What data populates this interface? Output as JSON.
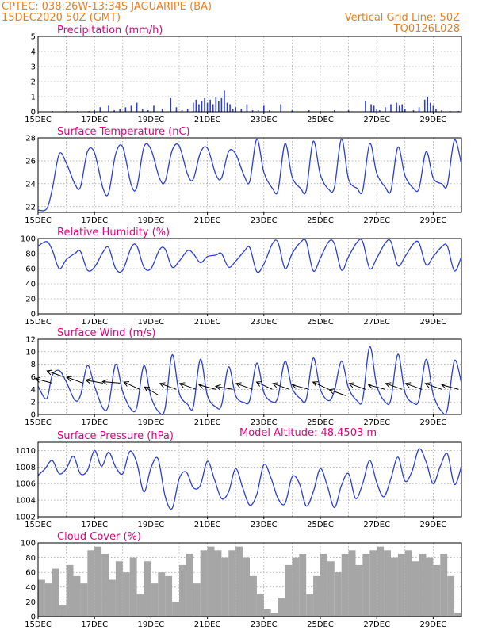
{
  "header": {
    "line1": "CPTEC:   038:26W-13:34S   JAGUARIPE (BA)",
    "line2": "15DEC2020 50Z (GMT)",
    "vgrid": "Vertical Grid Line: 50Z",
    "code": "TQ0126L028",
    "model_altitude": "Model Altitude: 48.4503 m"
  },
  "colors": {
    "series_line": "#2b3fd6",
    "bar": "#2b3fd6",
    "cloud": "#a6a6a6",
    "title": "#e6007e",
    "header": "#e67e22",
    "axis": "#000000",
    "grid": "#8a8a8a"
  },
  "chart_data": [
    {
      "type": "bar",
      "title": "Precipitation (mm/h)",
      "ylim": [
        0,
        5
      ],
      "yticks": [
        0,
        1,
        2,
        3,
        4,
        5
      ],
      "xlim": [
        15,
        30
      ],
      "xticks": [
        "15DEC",
        "17DEC",
        "19DEC",
        "21DEC",
        "23DEC",
        "25DEC",
        "27DEC",
        "29DEC"
      ],
      "x": [
        15.5,
        16.0,
        16.4,
        16.8,
        17.0,
        17.2,
        17.5,
        17.7,
        17.9,
        18.1,
        18.3,
        18.5,
        18.7,
        18.9,
        19.1,
        19.4,
        19.7,
        19.9,
        20.1,
        20.3,
        20.5,
        20.6,
        20.7,
        20.8,
        20.9,
        21.0,
        21.1,
        21.2,
        21.3,
        21.4,
        21.5,
        21.6,
        21.7,
        21.8,
        21.9,
        22.0,
        22.2,
        22.4,
        22.6,
        22.8,
        23.0,
        23.2,
        23.6,
        24.0,
        24.6,
        25.0,
        25.5,
        26.0,
        26.6,
        26.8,
        26.9,
        27.0,
        27.1,
        27.3,
        27.5,
        27.7,
        27.8,
        27.9,
        28.0,
        28.3,
        28.5,
        28.7,
        28.8,
        28.9,
        29.0,
        29.1,
        29.3,
        29.6,
        29.9
      ],
      "values": [
        0.05,
        0.05,
        0.05,
        0.05,
        0.1,
        0.3,
        0.4,
        0.1,
        0.2,
        0.3,
        0.4,
        0.6,
        0.2,
        0.1,
        0.4,
        0.2,
        0.9,
        0.3,
        0.1,
        0.2,
        0.6,
        0.8,
        0.5,
        0.7,
        0.9,
        0.6,
        0.8,
        0.5,
        1.0,
        0.7,
        0.9,
        1.4,
        0.6,
        0.5,
        0.2,
        0.3,
        0.2,
        0.5,
        0.1,
        0.1,
        0.4,
        0.1,
        0.5,
        0.1,
        0.1,
        0.05,
        0.1,
        0.1,
        0.7,
        0.5,
        0.4,
        0.2,
        0.1,
        0.3,
        0.5,
        0.6,
        0.4,
        0.5,
        0.2,
        0.1,
        0.3,
        0.8,
        1.0,
        0.6,
        0.4,
        0.2,
        0.1,
        0.05,
        0.05
      ]
    },
    {
      "type": "line",
      "title": "Surface Temperature (nC)",
      "ylim": [
        21.5,
        28
      ],
      "yticks": [
        22,
        24,
        26,
        28
      ],
      "xlim": [
        15,
        30
      ],
      "xticks": [
        "15DEC",
        "17DEC",
        "19DEC",
        "21DEC",
        "23DEC",
        "25DEC",
        "27DEC",
        "29DEC"
      ],
      "x": [
        15.0,
        15.3,
        15.5,
        15.75,
        16.0,
        16.3,
        16.5,
        16.75,
        17.0,
        17.3,
        17.5,
        17.75,
        18.0,
        18.3,
        18.5,
        18.75,
        19.0,
        19.3,
        19.5,
        19.75,
        20.0,
        20.3,
        20.5,
        20.75,
        21.0,
        21.3,
        21.5,
        21.75,
        22.0,
        22.3,
        22.5,
        22.75,
        23.0,
        23.3,
        23.5,
        23.75,
        24.0,
        24.3,
        24.5,
        24.75,
        25.0,
        25.3,
        25.5,
        25.75,
        26.0,
        26.3,
        26.5,
        26.75,
        27.0,
        27.3,
        27.5,
        27.75,
        28.0,
        28.3,
        28.5,
        28.75,
        29.0,
        29.3,
        29.5,
        29.75,
        30.0
      ],
      "values": [
        21.7,
        21.8,
        23.5,
        26.6,
        25.8,
        24.0,
        23.7,
        26.8,
        26.7,
        23.6,
        23.2,
        26.6,
        27.2,
        23.9,
        23.7,
        27.2,
        27.0,
        24.5,
        24.2,
        26.9,
        27.3,
        24.8,
        24.4,
        26.7,
        27.1,
        24.8,
        24.5,
        26.8,
        26.6,
        24.7,
        24.2,
        27.9,
        25.0,
        23.6,
        23.4,
        27.5,
        24.6,
        23.6,
        23.4,
        27.7,
        24.8,
        23.5,
        23.7,
        27.9,
        24.4,
        23.6,
        23.4,
        27.5,
        24.9,
        23.7,
        23.4,
        27.2,
        24.7,
        23.6,
        23.6,
        26.8,
        24.5,
        24.0,
        23.9,
        27.8,
        25.7
      ]
    },
    {
      "type": "line",
      "title": "Relative Humidity (%)",
      "ylim": [
        0,
        100
      ],
      "yticks": [
        0,
        20,
        40,
        60,
        80,
        100
      ],
      "xlim": [
        15,
        30
      ],
      "xticks": [
        "15DEC",
        "17DEC",
        "19DEC",
        "21DEC",
        "23DEC",
        "25DEC",
        "27DEC",
        "29DEC"
      ],
      "x": [
        15.0,
        15.3,
        15.5,
        15.75,
        16.0,
        16.3,
        16.5,
        16.75,
        17.0,
        17.3,
        17.5,
        17.75,
        18.0,
        18.3,
        18.5,
        18.75,
        19.0,
        19.3,
        19.5,
        19.75,
        20.0,
        20.3,
        20.5,
        20.75,
        21.0,
        21.3,
        21.5,
        21.75,
        22.0,
        22.3,
        22.5,
        22.75,
        23.0,
        23.3,
        23.5,
        23.75,
        24.0,
        24.3,
        24.5,
        24.75,
        25.0,
        25.3,
        25.5,
        25.75,
        26.0,
        26.3,
        26.5,
        26.75,
        27.0,
        27.3,
        27.5,
        27.75,
        28.0,
        28.3,
        28.5,
        28.75,
        29.0,
        29.3,
        29.5,
        29.75,
        30.0
      ],
      "values": [
        90,
        96,
        85,
        60,
        72,
        80,
        83,
        58,
        62,
        82,
        88,
        60,
        58,
        88,
        90,
        62,
        60,
        85,
        86,
        62,
        70,
        84,
        80,
        68,
        76,
        78,
        80,
        62,
        70,
        83,
        88,
        56,
        66,
        93,
        95,
        60,
        80,
        95,
        96,
        57,
        74,
        96,
        93,
        58,
        76,
        95,
        96,
        60,
        74,
        94,
        96,
        64,
        76,
        93,
        94,
        65,
        76,
        89,
        90,
        57,
        76
      ]
    },
    {
      "type": "line",
      "title": "Surface Wind (m/s)",
      "ylim": [
        0,
        12
      ],
      "yticks": [
        0,
        2,
        4,
        6,
        8,
        10,
        12
      ],
      "xlim": [
        15,
        30
      ],
      "xticks": [
        "15DEC",
        "17DEC",
        "19DEC",
        "21DEC",
        "23DEC",
        "25DEC",
        "27DEC",
        "29DEC"
      ],
      "x": [
        15.0,
        15.3,
        15.5,
        15.75,
        16.0,
        16.3,
        16.5,
        16.75,
        17.0,
        17.3,
        17.5,
        17.75,
        18.0,
        18.3,
        18.5,
        18.75,
        19.0,
        19.3,
        19.5,
        19.75,
        20.0,
        20.3,
        20.5,
        20.75,
        21.0,
        21.3,
        21.5,
        21.75,
        22.0,
        22.3,
        22.5,
        22.75,
        23.0,
        23.3,
        23.5,
        23.75,
        24.0,
        24.3,
        24.5,
        24.75,
        25.0,
        25.3,
        25.5,
        25.75,
        26.0,
        26.3,
        26.5,
        26.75,
        27.0,
        27.3,
        27.5,
        27.75,
        28.0,
        28.3,
        28.5,
        28.75,
        29.0,
        29.3,
        29.5,
        29.75,
        30.0
      ],
      "values": [
        4.5,
        2.5,
        6.2,
        7.0,
        5.2,
        2.3,
        3.0,
        7.8,
        4.5,
        1.0,
        1.5,
        8.0,
        3.6,
        0.8,
        1.2,
        7.8,
        2.8,
        0.3,
        1.0,
        9.5,
        3.4,
        1.6,
        1.2,
        8.8,
        3.0,
        1.2,
        1.5,
        7.6,
        3.0,
        1.9,
        2.3,
        8.2,
        3.5,
        2.0,
        2.8,
        8.5,
        4.2,
        2.5,
        2.4,
        9.0,
        4.0,
        2.2,
        3.8,
        8.5,
        4.2,
        2.2,
        2.4,
        10.8,
        4.6,
        2.0,
        2.4,
        9.6,
        3.5,
        1.8,
        2.4,
        8.8,
        3.2,
        0.5,
        0.8,
        8.6,
        5.0
      ],
      "arrows": {
        "x": [
          15.5,
          15.9,
          16.6,
          17.3,
          17.9,
          18.6,
          19.3,
          19.9,
          20.6,
          21.3,
          21.9,
          22.6,
          23.3,
          23.9,
          24.6,
          25.3,
          25.9,
          26.6,
          27.3,
          27.9,
          28.6,
          29.3,
          29.9
        ],
        "speed": [
          5,
          6,
          5,
          5,
          5,
          4,
          3,
          4,
          4,
          4,
          4,
          4,
          4,
          4,
          4,
          4,
          3,
          4,
          4,
          4,
          4,
          4,
          4
        ],
        "dir_to_deg": [
          165,
          160,
          160,
          170,
          175,
          155,
          150,
          160,
          160,
          165,
          170,
          160,
          155,
          160,
          165,
          155,
          160,
          160,
          165,
          160,
          160,
          160,
          165
        ]
      }
    },
    {
      "type": "line",
      "title": "Surface Pressure (hPa)",
      "ylim": [
        1002,
        1011
      ],
      "yticks": [
        1002,
        1004,
        1006,
        1008,
        1010
      ],
      "xlim": [
        15,
        30
      ],
      "xticks": [
        "15DEC",
        "17DEC",
        "19DEC",
        "21DEC",
        "23DEC",
        "25DEC",
        "27DEC",
        "29DEC"
      ],
      "x": [
        15.0,
        15.25,
        15.5,
        15.75,
        16.0,
        16.25,
        16.5,
        16.75,
        17.0,
        17.25,
        17.5,
        17.75,
        18.0,
        18.25,
        18.5,
        18.75,
        19.0,
        19.25,
        19.5,
        19.75,
        20.0,
        20.25,
        20.5,
        20.75,
        21.0,
        21.25,
        21.5,
        21.75,
        22.0,
        22.25,
        22.5,
        22.75,
        23.0,
        23.25,
        23.5,
        23.75,
        24.0,
        24.25,
        24.5,
        24.75,
        25.0,
        25.25,
        25.5,
        25.75,
        26.0,
        26.25,
        26.5,
        26.75,
        27.0,
        27.25,
        27.5,
        27.75,
        28.0,
        28.25,
        28.5,
        28.75,
        29.0,
        29.25,
        29.5,
        29.75,
        30.0
      ],
      "values": [
        1007.0,
        1007.8,
        1008.8,
        1007.2,
        1007.8,
        1009.3,
        1007.2,
        1007.6,
        1010.0,
        1008.1,
        1009.8,
        1008.0,
        1007.2,
        1009.9,
        1008.5,
        1005.0,
        1007.9,
        1009.0,
        1004.5,
        1003.0,
        1006.6,
        1007.4,
        1005.5,
        1005.8,
        1008.7,
        1006.5,
        1004.2,
        1005.0,
        1007.8,
        1005.5,
        1003.4,
        1004.7,
        1008.3,
        1006.7,
        1004.2,
        1003.6,
        1006.8,
        1006.1,
        1003.3,
        1005.0,
        1007.8,
        1005.7,
        1003.1,
        1005.8,
        1007.2,
        1004.2,
        1006.0,
        1008.8,
        1006.1,
        1004.4,
        1006.6,
        1009.2,
        1006.3,
        1007.5,
        1010.2,
        1008.6,
        1006.0,
        1008.1,
        1009.6,
        1005.9,
        1008.1
      ]
    },
    {
      "type": "bar",
      "title": "Cloud Cover (%)",
      "ylim": [
        0,
        100
      ],
      "yticks": [
        0,
        20,
        40,
        60,
        80,
        100
      ],
      "xlim": [
        15,
        30
      ],
      "xticks": [
        "15DEC",
        "17DEC",
        "19DEC",
        "21DEC",
        "23DEC",
        "25DEC",
        "27DEC",
        "29DEC"
      ],
      "x": [
        15.0,
        15.25,
        15.5,
        15.75,
        16.0,
        16.25,
        16.5,
        16.75,
        17.0,
        17.25,
        17.5,
        17.75,
        18.0,
        18.25,
        18.5,
        18.75,
        19.0,
        19.25,
        19.5,
        19.75,
        20.0,
        20.25,
        20.5,
        20.75,
        21.0,
        21.25,
        21.5,
        21.75,
        22.0,
        22.25,
        22.5,
        22.75,
        23.0,
        23.25,
        23.5,
        23.75,
        24.0,
        24.25,
        24.5,
        24.75,
        25.0,
        25.25,
        25.5,
        25.75,
        26.0,
        26.25,
        26.5,
        26.75,
        27.0,
        27.25,
        27.5,
        27.75,
        28.0,
        28.25,
        28.5,
        28.75,
        29.0,
        29.25,
        29.5,
        29.75
      ],
      "values": [
        50,
        45,
        65,
        15,
        70,
        55,
        45,
        90,
        95,
        85,
        50,
        75,
        60,
        80,
        30,
        75,
        45,
        60,
        55,
        20,
        70,
        85,
        45,
        90,
        95,
        90,
        80,
        90,
        95,
        80,
        55,
        30,
        10,
        5,
        25,
        70,
        80,
        85,
        30,
        55,
        85,
        75,
        60,
        85,
        90,
        70,
        85,
        90,
        95,
        90,
        80,
        85,
        90,
        75,
        85,
        80,
        70,
        85,
        55,
        5
      ]
    }
  ]
}
